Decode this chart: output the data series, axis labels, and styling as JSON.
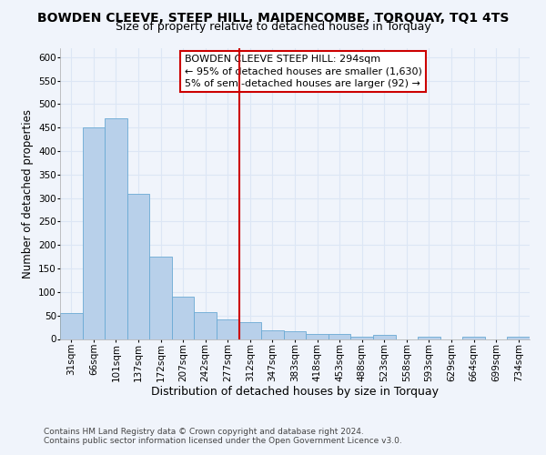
{
  "title": "BOWDEN CLEEVE, STEEP HILL, MAIDENCOMBE, TORQUAY, TQ1 4TS",
  "subtitle": "Size of property relative to detached houses in Torquay",
  "xlabel": "Distribution of detached houses by size in Torquay",
  "ylabel": "Number of detached properties",
  "bin_labels": [
    "31sqm",
    "66sqm",
    "101sqm",
    "137sqm",
    "172sqm",
    "207sqm",
    "242sqm",
    "277sqm",
    "312sqm",
    "347sqm",
    "383sqm",
    "418sqm",
    "453sqm",
    "488sqm",
    "523sqm",
    "558sqm",
    "593sqm",
    "629sqm",
    "664sqm",
    "699sqm",
    "734sqm"
  ],
  "bar_heights": [
    55,
    450,
    470,
    310,
    175,
    90,
    57,
    42,
    35,
    18,
    16,
    10,
    10,
    5,
    8,
    0,
    5,
    0,
    5,
    0,
    4
  ],
  "bar_color": "#b8d0ea",
  "bar_edge_color": "#6aaad4",
  "ylim": [
    0,
    620
  ],
  "yticks": [
    0,
    50,
    100,
    150,
    200,
    250,
    300,
    350,
    400,
    450,
    500,
    550,
    600
  ],
  "vline_x_index": 8,
  "vline_color": "#cc0000",
  "annotation_line1": "BOWDEN CLEEVE STEEP HILL: 294sqm",
  "annotation_line2": "← 95% of detached houses are smaller (1,630)",
  "annotation_line3": "5% of semi-detached houses are larger (92) →",
  "annotation_box_color": "#cc0000",
  "footer1": "Contains HM Land Registry data © Crown copyright and database right 2024.",
  "footer2": "Contains public sector information licensed under the Open Government Licence v3.0.",
  "bg_color": "#f0f4fb",
  "grid_color": "#dce6f5",
  "title_fontsize": 10,
  "subtitle_fontsize": 9,
  "xlabel_fontsize": 9,
  "ylabel_fontsize": 8.5,
  "tick_fontsize": 7.5,
  "footer_fontsize": 6.5,
  "ann_fontsize": 8.0
}
